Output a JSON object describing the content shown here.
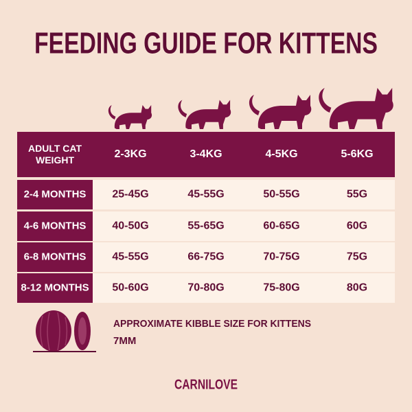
{
  "title": "FEEDING GUIDE FOR KITTENS",
  "table": {
    "header": [
      "ADULT CAT WEIGHT",
      "2-3KG",
      "3-4KG",
      "4-5KG",
      "5-6KG"
    ],
    "rows": [
      [
        "2-4 MONTHS",
        "25-45G",
        "45-55G",
        "50-55G",
        "55G"
      ],
      [
        "4-6 MONTHS",
        "40-50G",
        "55-65G",
        "60-65G",
        "60G"
      ],
      [
        "6-8 MONTHS",
        "45-55G",
        "66-75G",
        "70-75G",
        "75G"
      ],
      [
        "8-12 MONTHS",
        "50-60G",
        "70-80G",
        "75-80G",
        "80G"
      ]
    ]
  },
  "kibble": {
    "label": "APPROXIMATE KIBBLE SIZE FOR KITTENS",
    "size": "7MM"
  },
  "brand": "CARNILOVE"
}
